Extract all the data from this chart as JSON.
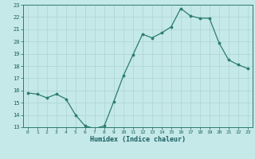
{
  "xlabel": "Humidex (Indice chaleur)",
  "x": [
    0,
    1,
    2,
    3,
    4,
    5,
    6,
    7,
    8,
    9,
    10,
    11,
    12,
    13,
    14,
    15,
    16,
    17,
    18,
    19,
    20,
    21,
    22,
    23
  ],
  "y": [
    15.8,
    15.7,
    15.4,
    15.7,
    15.3,
    14.0,
    13.1,
    12.9,
    13.1,
    15.1,
    17.2,
    18.9,
    20.6,
    20.3,
    20.7,
    21.2,
    22.7,
    22.1,
    21.9,
    21.9,
    19.9,
    18.5,
    18.1,
    17.8
  ],
  "ylim": [
    13,
    23
  ],
  "xlim": [
    -0.5,
    23.5
  ],
  "yticks": [
    13,
    14,
    15,
    16,
    17,
    18,
    19,
    20,
    21,
    22,
    23
  ],
  "xticks": [
    0,
    1,
    2,
    3,
    4,
    5,
    6,
    7,
    8,
    9,
    10,
    11,
    12,
    13,
    14,
    15,
    16,
    17,
    18,
    19,
    20,
    21,
    22,
    23
  ],
  "line_color": "#2a7d6e",
  "marker_color": "#2a7d6e",
  "bg_color": "#c5e8e8",
  "grid_color": "#aed4d4",
  "spine_color": "#2a7d6e",
  "label_color": "#1a5f5f",
  "tick_color": "#1a5f5f"
}
